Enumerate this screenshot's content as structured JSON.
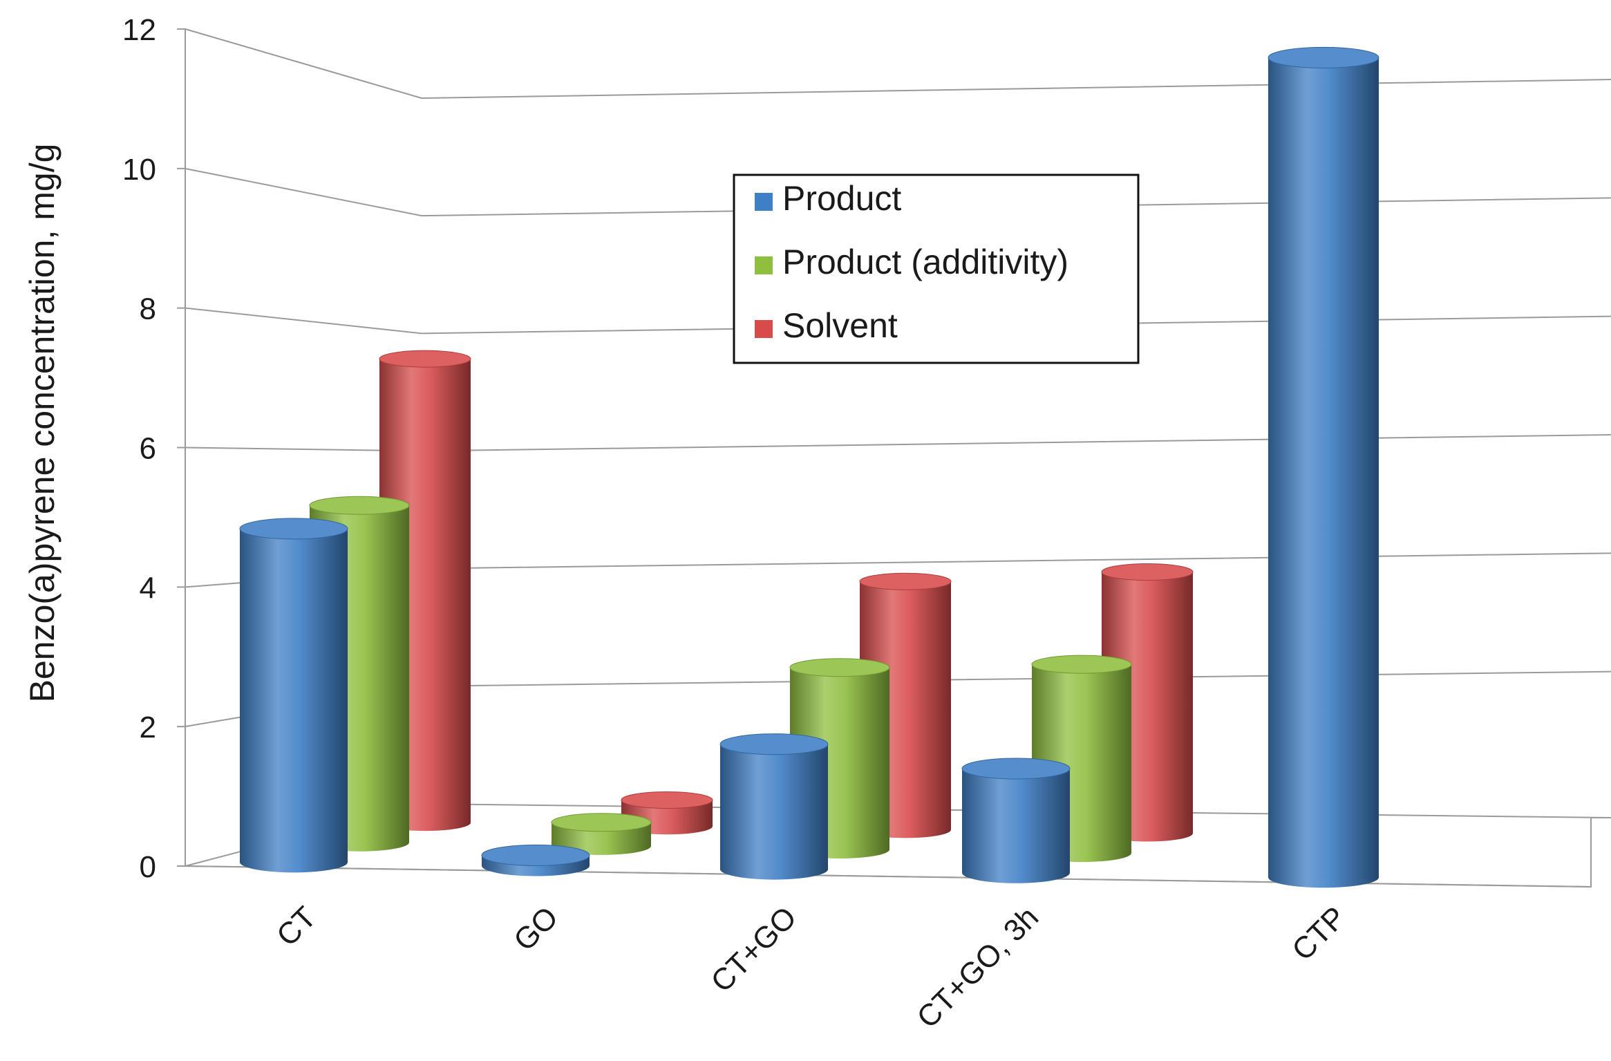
{
  "chart_data": {
    "type": "bar",
    "style": "3d-cylinder",
    "categories": [
      "CT",
      "GO",
      "CT+GO",
      "CT+GO, 3h",
      "CTP"
    ],
    "series": [
      {
        "name": "Product",
        "color": "#3f7fc6",
        "values": [
          4.8,
          0.15,
          1.8,
          1.5,
          11.8
        ]
      },
      {
        "name": "Product (additivity)",
        "color": "#8fbf3f",
        "values": [
          5.0,
          0.35,
          2.7,
          2.8,
          null
        ]
      },
      {
        "name": "Solvent",
        "color": "#d84b4b",
        "values": [
          7.1,
          0.4,
          3.8,
          4.0,
          null
        ]
      }
    ],
    "ylabel": "Benzo(a)pyrene concentration,  mg/g",
    "xlabel": "",
    "ylim": [
      0,
      12
    ],
    "yticks": [
      "0",
      "2",
      "4",
      "6",
      "8",
      "10",
      "12"
    ],
    "grid": true,
    "legend_position": "top-center"
  }
}
